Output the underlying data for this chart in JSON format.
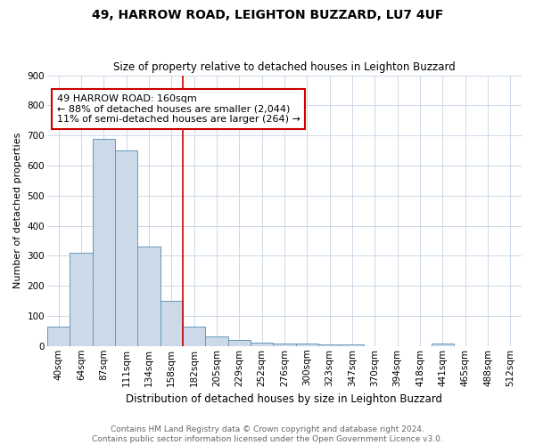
{
  "title_line1": "49, HARROW ROAD, LEIGHTON BUZZARD, LU7 4UF",
  "title_line2": "Size of property relative to detached houses in Leighton Buzzard",
  "xlabel": "Distribution of detached houses by size in Leighton Buzzard",
  "ylabel": "Number of detached properties",
  "categories": [
    "40sqm",
    "64sqm",
    "87sqm",
    "111sqm",
    "134sqm",
    "158sqm",
    "182sqm",
    "205sqm",
    "229sqm",
    "252sqm",
    "276sqm",
    "300sqm",
    "323sqm",
    "347sqm",
    "370sqm",
    "394sqm",
    "418sqm",
    "441sqm",
    "465sqm",
    "488sqm",
    "512sqm"
  ],
  "values": [
    63,
    310,
    688,
    651,
    330,
    150,
    65,
    33,
    20,
    12,
    8,
    8,
    5,
    4,
    0,
    0,
    0,
    7,
    0,
    0,
    0
  ],
  "bar_color": "#ccd9e8",
  "bar_edge_color": "#6699bb",
  "vline_x_idx": 5,
  "vline_color": "#cc0000",
  "annotation_text": "49 HARROW ROAD: 160sqm\n← 88% of detached houses are smaller (2,044)\n11% of semi-detached houses are larger (264) →",
  "annotation_box_color": "#ffffff",
  "annotation_box_edge_color": "#cc0000",
  "ylim": [
    0,
    900
  ],
  "yticks": [
    0,
    100,
    200,
    300,
    400,
    500,
    600,
    700,
    800,
    900
  ],
  "footer_line1": "Contains HM Land Registry data © Crown copyright and database right 2024.",
  "footer_line2": "Contains public sector information licensed under the Open Government Licence v3.0.",
  "background_color": "#ffffff",
  "grid_color": "#ccd8e8",
  "title_fontsize": 10,
  "subtitle_fontsize": 8.5,
  "xlabel_fontsize": 8.5,
  "ylabel_fontsize": 8,
  "tick_fontsize": 7.5,
  "footer_fontsize": 6.5,
  "annot_fontsize": 8
}
